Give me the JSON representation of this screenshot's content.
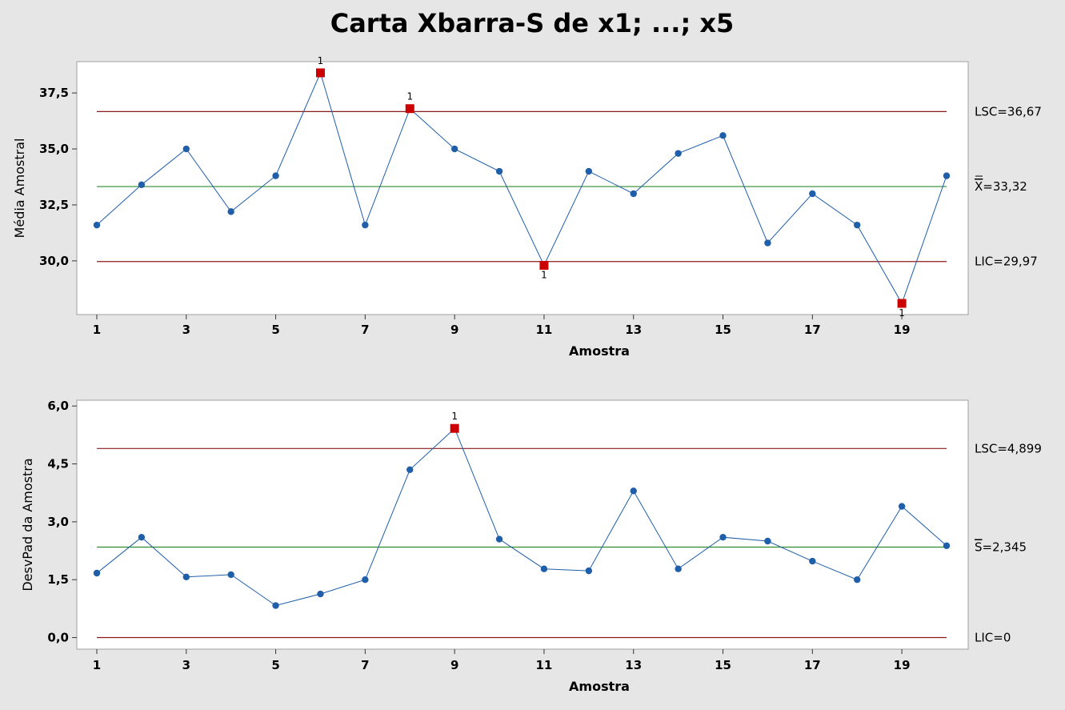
{
  "title": "Carta Xbarra-S de x1; ...; x5",
  "colors": {
    "background": "#e6e6e6",
    "panel": "#ffffff",
    "line": "#1f5ea8",
    "point": "#1f5ea8",
    "out_of_control": "#cc0000",
    "limit_line": "#8b1a1a",
    "center_line": "#2e8b2e"
  },
  "chart_data": [
    {
      "type": "line",
      "name": "xbar",
      "xlabel": "Amostra",
      "ylabel": "Média Amostral",
      "xlim": [
        1,
        20
      ],
      "ylim": [
        27.6,
        38.9
      ],
      "x_ticks": [
        1,
        3,
        5,
        7,
        9,
        11,
        13,
        15,
        17,
        19
      ],
      "y_ticks": [
        30.0,
        32.5,
        35.0,
        37.5
      ],
      "y_tick_labels": [
        "30,0",
        "32,5",
        "35,0",
        "37,5"
      ],
      "x": [
        1,
        2,
        3,
        4,
        5,
        6,
        7,
        8,
        9,
        10,
        11,
        12,
        13,
        14,
        15,
        16,
        17,
        18,
        19,
        20
      ],
      "values": [
        31.6,
        33.4,
        35.0,
        32.2,
        33.8,
        38.4,
        31.6,
        36.8,
        35.0,
        34.0,
        29.8,
        34.0,
        33.0,
        34.8,
        35.6,
        30.8,
        33.0,
        31.6,
        28.1,
        33.8
      ],
      "out_of_control": [
        6,
        8,
        11,
        19
      ],
      "flags": [
        {
          "x": 6,
          "text": "1",
          "position": "above"
        },
        {
          "x": 8,
          "text": "1",
          "position": "above"
        },
        {
          "x": 11,
          "text": "1",
          "position": "below"
        },
        {
          "x": 19,
          "text": "1",
          "position": "below"
        }
      ],
      "limits": {
        "ucl": 36.67,
        "center": 33.32,
        "lcl": 29.97,
        "ucl_label": "LSC=36,67",
        "center_symbol": "X",
        "center_label": "=33,32",
        "lcl_label": "LIC=29,97"
      }
    },
    {
      "type": "line",
      "name": "s",
      "xlabel": "Amostra",
      "ylabel": "DesvPad da Amostra",
      "xlim": [
        1,
        20
      ],
      "ylim": [
        -0.3,
        6.15
      ],
      "x_ticks": [
        1,
        3,
        5,
        7,
        9,
        11,
        13,
        15,
        17,
        19
      ],
      "y_ticks": [
        0.0,
        1.5,
        3.0,
        4.5,
        6.0
      ],
      "y_tick_labels": [
        "0,0",
        "1,5",
        "3,0",
        "4,5",
        "6,0"
      ],
      "x": [
        1,
        2,
        3,
        4,
        5,
        6,
        7,
        8,
        9,
        10,
        11,
        12,
        13,
        14,
        15,
        16,
        17,
        18,
        19,
        20
      ],
      "values": [
        1.67,
        2.6,
        1.57,
        1.63,
        0.83,
        1.13,
        1.5,
        4.35,
        5.42,
        2.55,
        1.78,
        1.73,
        3.8,
        1.78,
        2.6,
        2.5,
        1.98,
        1.5,
        3.4,
        2.38
      ],
      "out_of_control": [
        9
      ],
      "flags": [
        {
          "x": 9,
          "text": "1",
          "position": "above"
        }
      ],
      "limits": {
        "ucl": 4.899,
        "center": 2.345,
        "lcl": 0,
        "ucl_label": "LSC=4,899",
        "center_symbol": "S",
        "center_label": "=2,345",
        "lcl_label": "LIC=0"
      }
    }
  ]
}
